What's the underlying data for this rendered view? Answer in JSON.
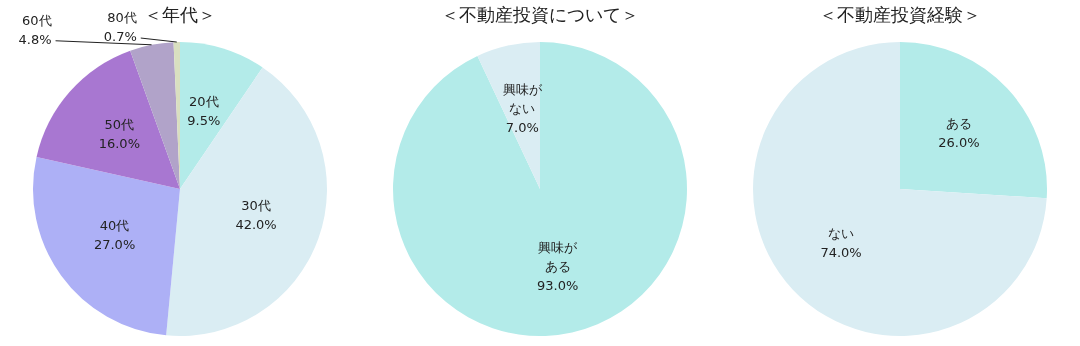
{
  "chart_data": [
    {
      "type": "pie",
      "title": "＜年代＞",
      "categories": [
        "20代",
        "30代",
        "40代",
        "50代",
        "60代",
        "80代"
      ],
      "values": [
        9.5,
        42.0,
        27.0,
        16.0,
        4.8,
        0.7
      ],
      "value_labels": [
        "9.5%",
        "42.0%",
        "27.0%",
        "16.0%",
        "4.8%",
        "0.7%"
      ],
      "colors": [
        "#b3ebe9",
        "#daedf3",
        "#adb0f6",
        "#a877d1",
        "#b1a3c9",
        "#d9dfc0"
      ]
    },
    {
      "type": "pie",
      "title": "＜不動産投資について＞",
      "categories": [
        "興味がある",
        "興味がない"
      ],
      "values": [
        93.0,
        7.0
      ],
      "value_labels": [
        "93.0%",
        "7.0%"
      ],
      "colors": [
        "#b3ebe9",
        "#daedf3"
      ]
    },
    {
      "type": "pie",
      "title": "＜不動産投資経験＞",
      "categories": [
        "ある",
        "ない"
      ],
      "values": [
        26.0,
        74.0
      ],
      "value_labels": [
        "26.0%",
        "74.0%"
      ],
      "colors": [
        "#b3ebe9",
        "#daedf3"
      ]
    }
  ]
}
